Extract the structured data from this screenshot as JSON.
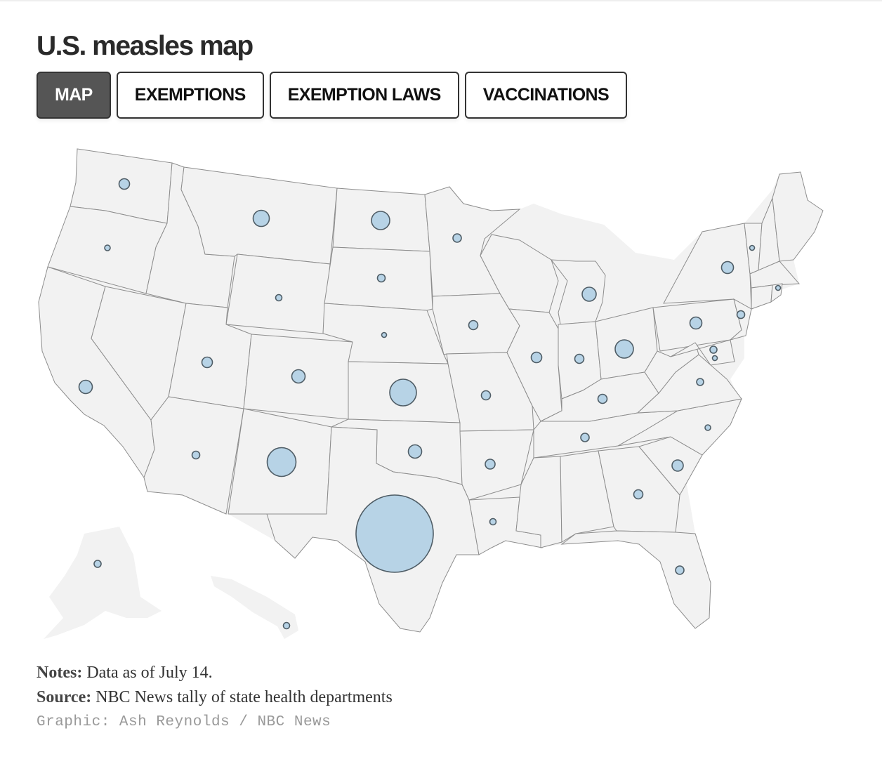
{
  "title": "U.S. measles map",
  "tabs": [
    {
      "label": "MAP",
      "active": true
    },
    {
      "label": "EXEMPTIONS",
      "active": false
    },
    {
      "label": "EXEMPTION LAWS",
      "active": false
    },
    {
      "label": "VACCINATIONS",
      "active": false
    }
  ],
  "colors": {
    "active_tab": "#555555",
    "land": "#f2f2f2",
    "border": "#8d8d8d",
    "bubble_fill": "#b7d3e6",
    "bubble_stroke": "#4f5d66"
  },
  "notes": {
    "notes_label": "Notes:",
    "notes_text": "Data as of July 14.",
    "source_label": "Source:",
    "source_text": "NBC News tally of state health departments",
    "credit": "Graphic: Ash Reynolds / NBC News"
  }
}
